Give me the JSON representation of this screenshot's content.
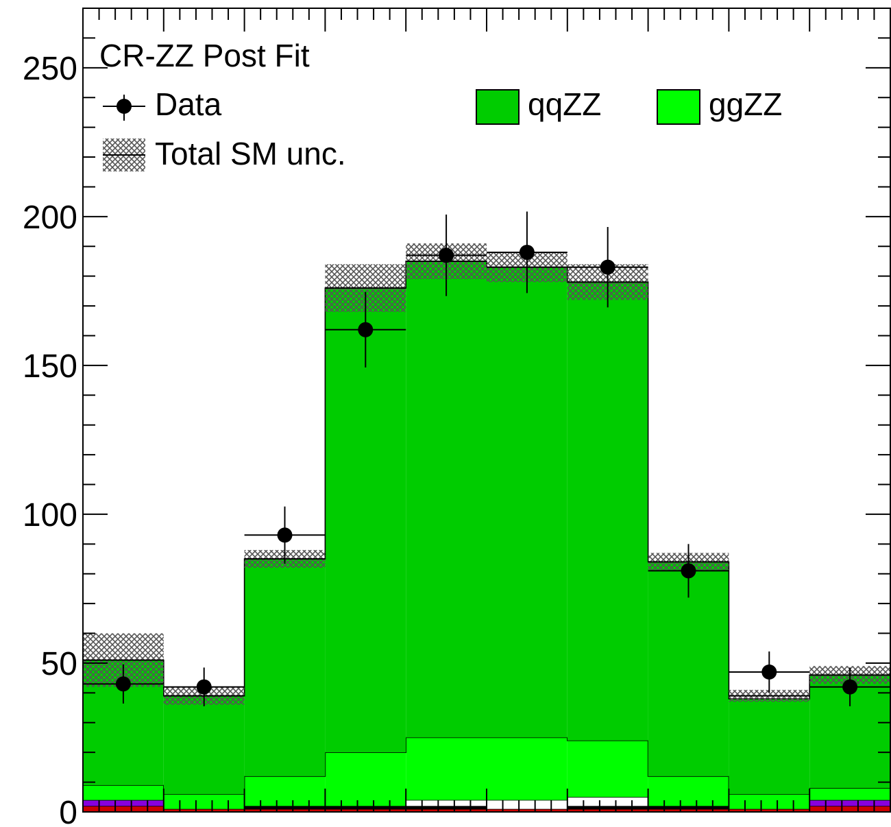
{
  "chart_data": {
    "type": "bar",
    "title": "CR-ZZ Post Fit",
    "x_bins": 10,
    "ylim": [
      0,
      270
    ],
    "y_ticks": [
      0,
      50,
      100,
      150,
      200,
      250
    ],
    "y_tick_labels": [
      "0",
      "50",
      "100",
      "150",
      "200",
      "250"
    ],
    "legend": {
      "placement": "top",
      "entries": [
        {
          "label": "Data",
          "style": "marker"
        },
        {
          "label": "Total SM unc.",
          "style": "hatch"
        },
        {
          "label": "qqZZ",
          "style": "fill",
          "color": "#00cc00"
        },
        {
          "label": "ggZZ",
          "style": "fill",
          "color": "#00ff00"
        }
      ]
    },
    "stack_series": [
      {
        "name": "",
        "color": "#cc0000",
        "values": [
          2,
          1,
          1,
          1,
          1,
          1,
          1,
          1,
          1,
          2
        ]
      },
      {
        "name": "",
        "color": "#8800dd",
        "values": [
          2,
          0,
          0,
          0,
          0,
          0,
          0,
          0,
          0,
          2
        ]
      },
      {
        "name": "",
        "color": "#000000",
        "values": [
          0,
          0,
          1,
          1,
          1,
          0,
          1,
          1,
          0,
          0
        ]
      },
      {
        "name": "",
        "color": "#ffffff",
        "values": [
          0,
          0,
          0,
          0,
          2,
          3,
          3,
          0,
          0,
          0
        ]
      },
      {
        "name": "ggZZ",
        "color": "#00ff00",
        "values": [
          5,
          5,
          10,
          18,
          21,
          21,
          19,
          10,
          5,
          4
        ]
      },
      {
        "name": "qqZZ",
        "color": "#00cc00",
        "values": [
          42,
          33,
          73,
          156,
          160,
          158,
          154,
          72,
          32,
          38
        ]
      }
    ],
    "total": [
      51,
      39,
      85,
      176,
      185,
      183,
      178,
      84,
      39,
      46
    ],
    "unc": [
      9,
      3,
      3,
      8,
      6,
      5,
      6,
      3,
      2,
      3
    ],
    "data_series": {
      "name": "Data",
      "values": [
        43,
        42,
        93,
        162,
        187,
        188,
        183,
        81,
        47,
        42
      ],
      "errors": [
        6.6,
        6.5,
        9.6,
        12.7,
        13.7,
        13.7,
        13.5,
        9,
        6.9,
        6.5
      ]
    }
  }
}
